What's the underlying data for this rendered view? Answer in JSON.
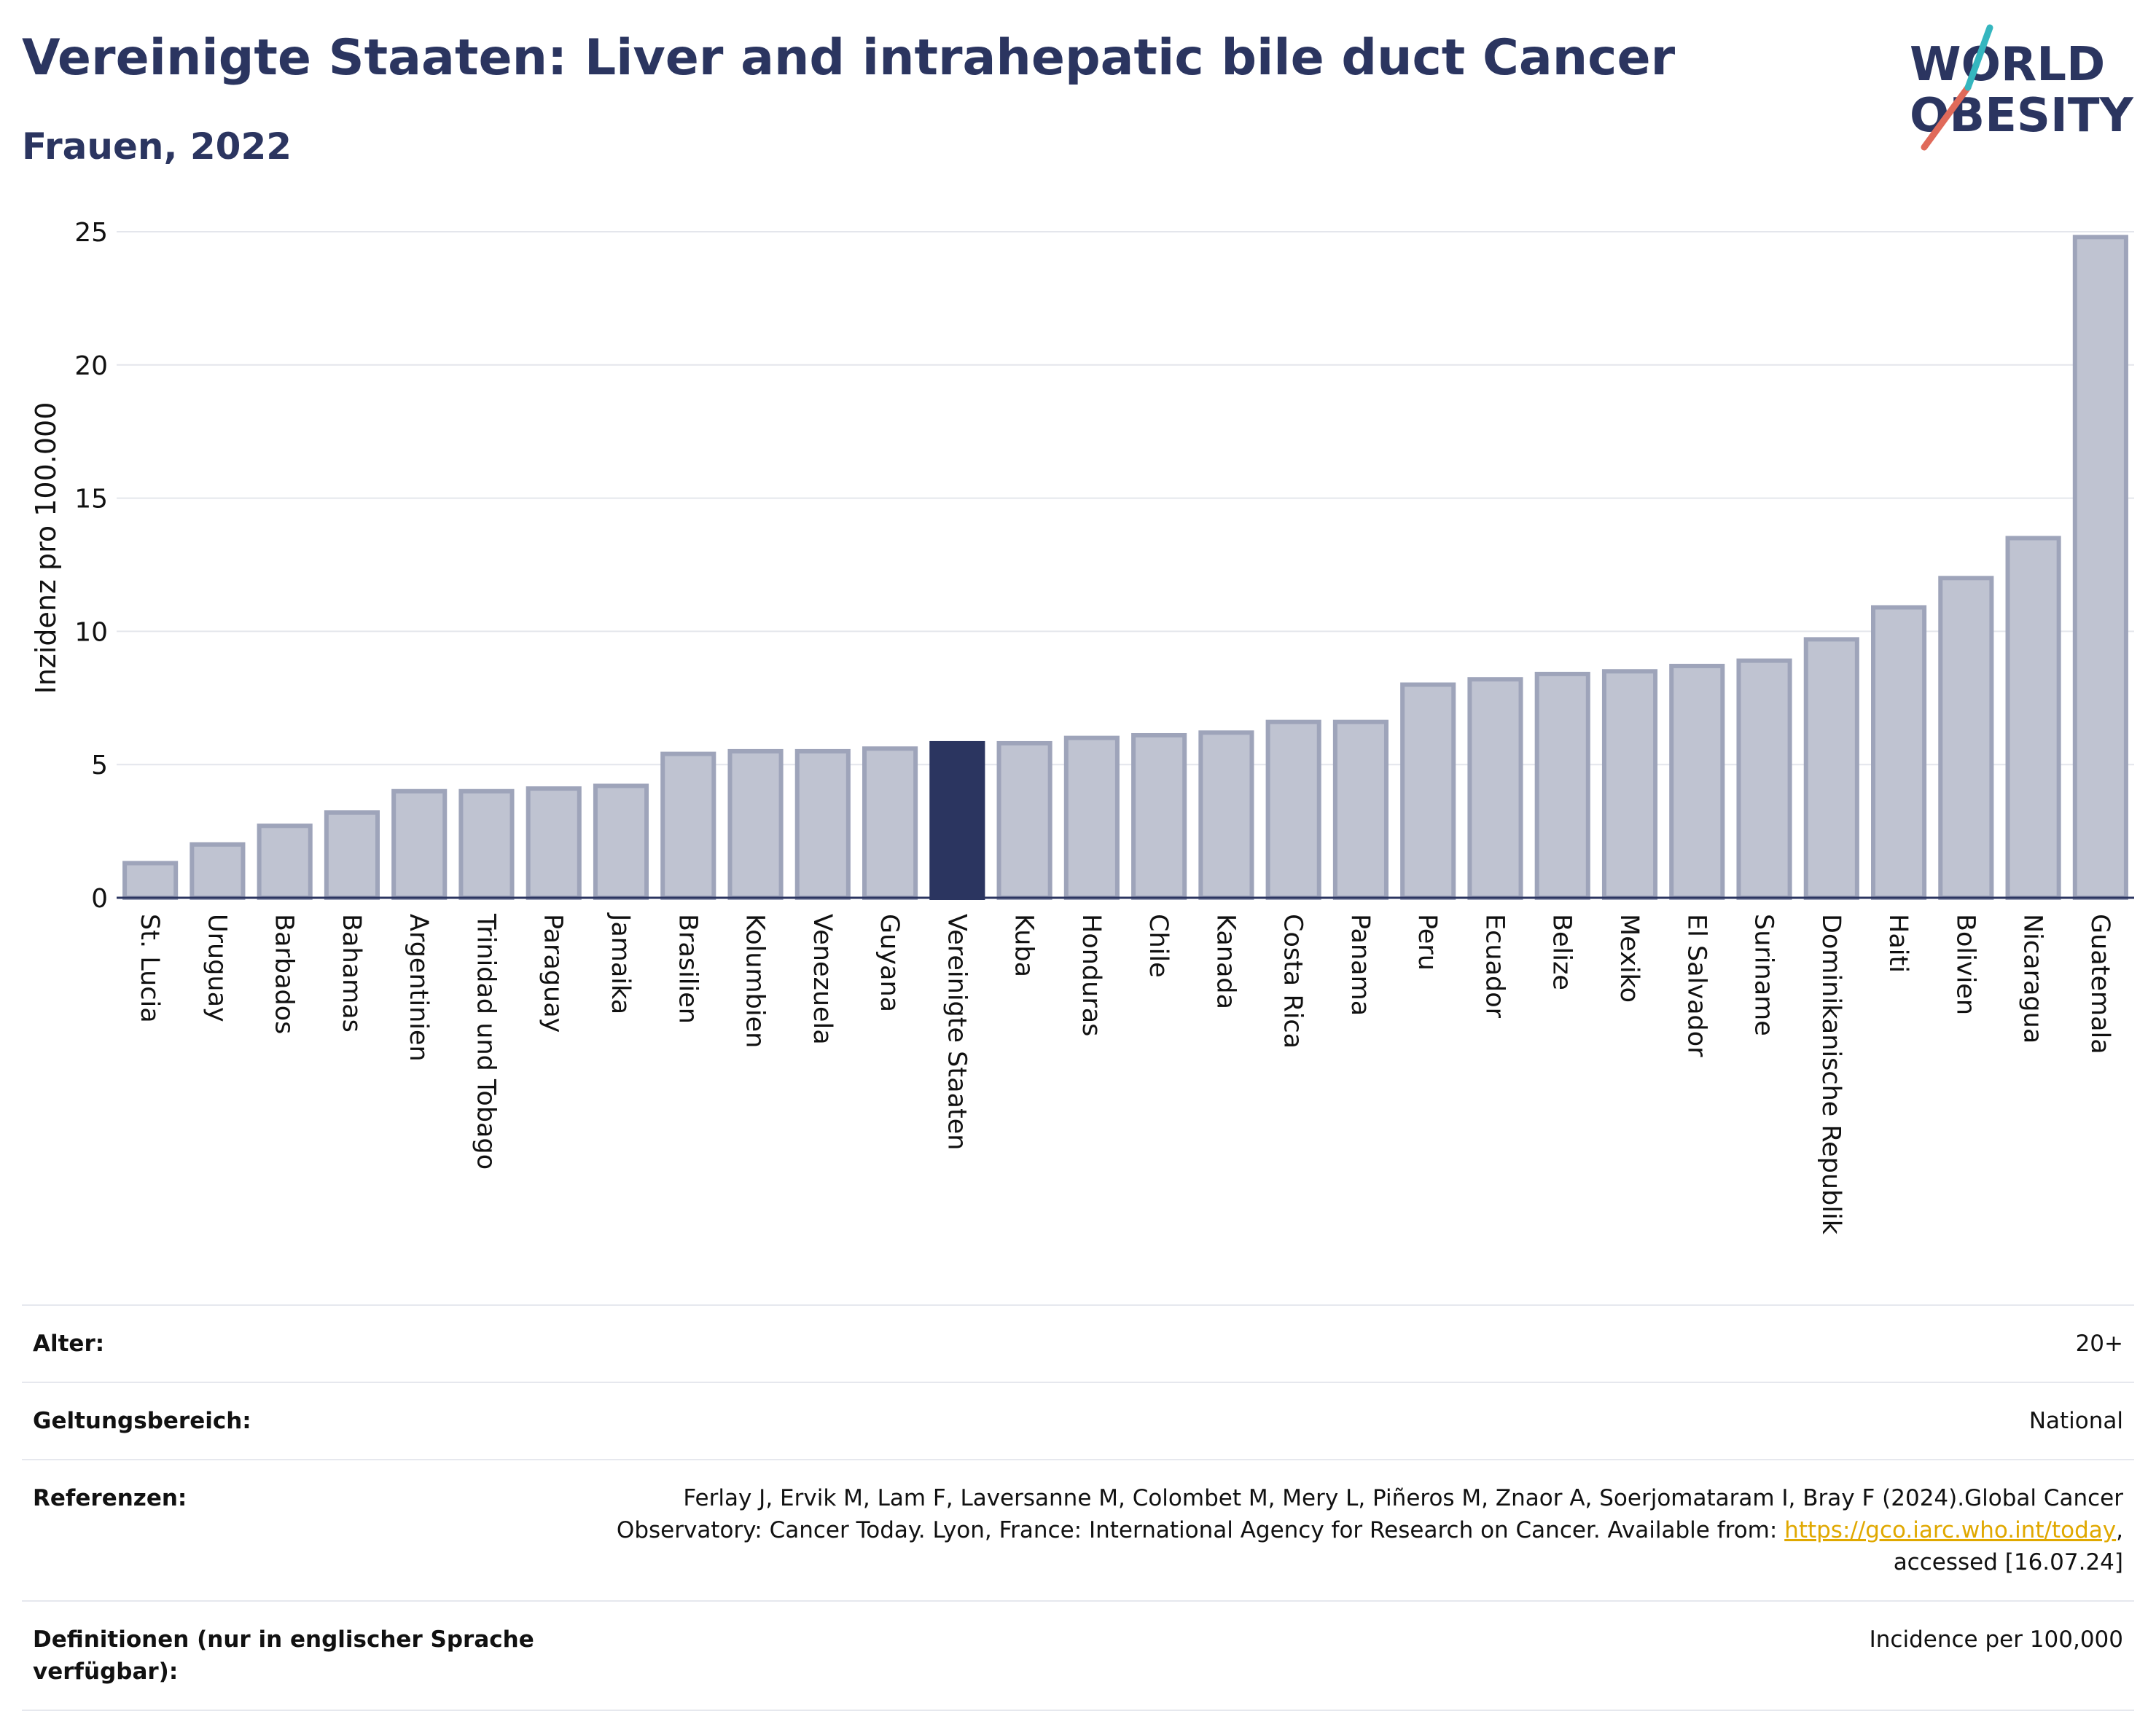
{
  "header": {
    "title": "Vereinigte Staaten: Liver and intrahepatic bile duct Cancer",
    "subtitle": "Frauen, 2022"
  },
  "logo": {
    "line1": "WORLD",
    "line2": "OBESITY"
  },
  "chart_data": {
    "type": "bar",
    "ylabel": "Inzidenz pro 100.000",
    "ylim": [
      0,
      25
    ],
    "yticks": [
      0,
      5,
      10,
      15,
      20,
      25
    ],
    "grid": true,
    "highlight": "Vereinigte Staaten",
    "categories": [
      "St. Lucia",
      "Uruguay",
      "Barbados",
      "Bahamas",
      "Argentinien",
      "Trinidad und Tobago",
      "Paraguay",
      "Jamaika",
      "Brasilien",
      "Kolumbien",
      "Venezuela",
      "Guyana",
      "Vereinigte Staaten",
      "Kuba",
      "Honduras",
      "Chile",
      "Kanada",
      "Costa Rica",
      "Panama",
      "Peru",
      "Ecuador",
      "Belize",
      "Mexiko",
      "El Salvador",
      "Suriname",
      "Dominikanische Republik",
      "Haiti",
      "Bolivien",
      "Nicaragua",
      "Guatemala"
    ],
    "values": [
      1.3,
      2.0,
      2.7,
      3.2,
      4.0,
      4.0,
      4.1,
      4.2,
      5.4,
      5.5,
      5.5,
      5.6,
      5.8,
      5.8,
      6.0,
      6.1,
      6.2,
      6.6,
      6.6,
      8.0,
      8.2,
      8.4,
      8.5,
      8.7,
      8.9,
      9.7,
      10.9,
      12.0,
      13.5,
      24.8
    ],
    "colors": {
      "bar": "#bfc3d1",
      "bar_border": "#9ea4ba",
      "highlight": "#2b3560"
    }
  },
  "meta": {
    "age_label": "Alter:",
    "age_value": "20+",
    "scope_label": "Geltungsbereich:",
    "scope_value": "National",
    "ref_label": "Referenzen:",
    "ref_text_1": "Ferlay J, Ervik M, Lam F, Laversanne M, Colombet M, Mery L, Piñeros M, Znaor A, Soerjomataram I, Bray F (2024).Global Cancer Observatory: Cancer Today. Lyon, France: International Agency for Research on Cancer. Available from: ",
    "ref_link": "https://gco.iarc.who.int/today",
    "ref_text_2": ", accessed [16.07.24]",
    "def_label": "Definitionen (nur in englischer Sprache verfügbar):",
    "def_value": "Incidence per 100,000"
  }
}
